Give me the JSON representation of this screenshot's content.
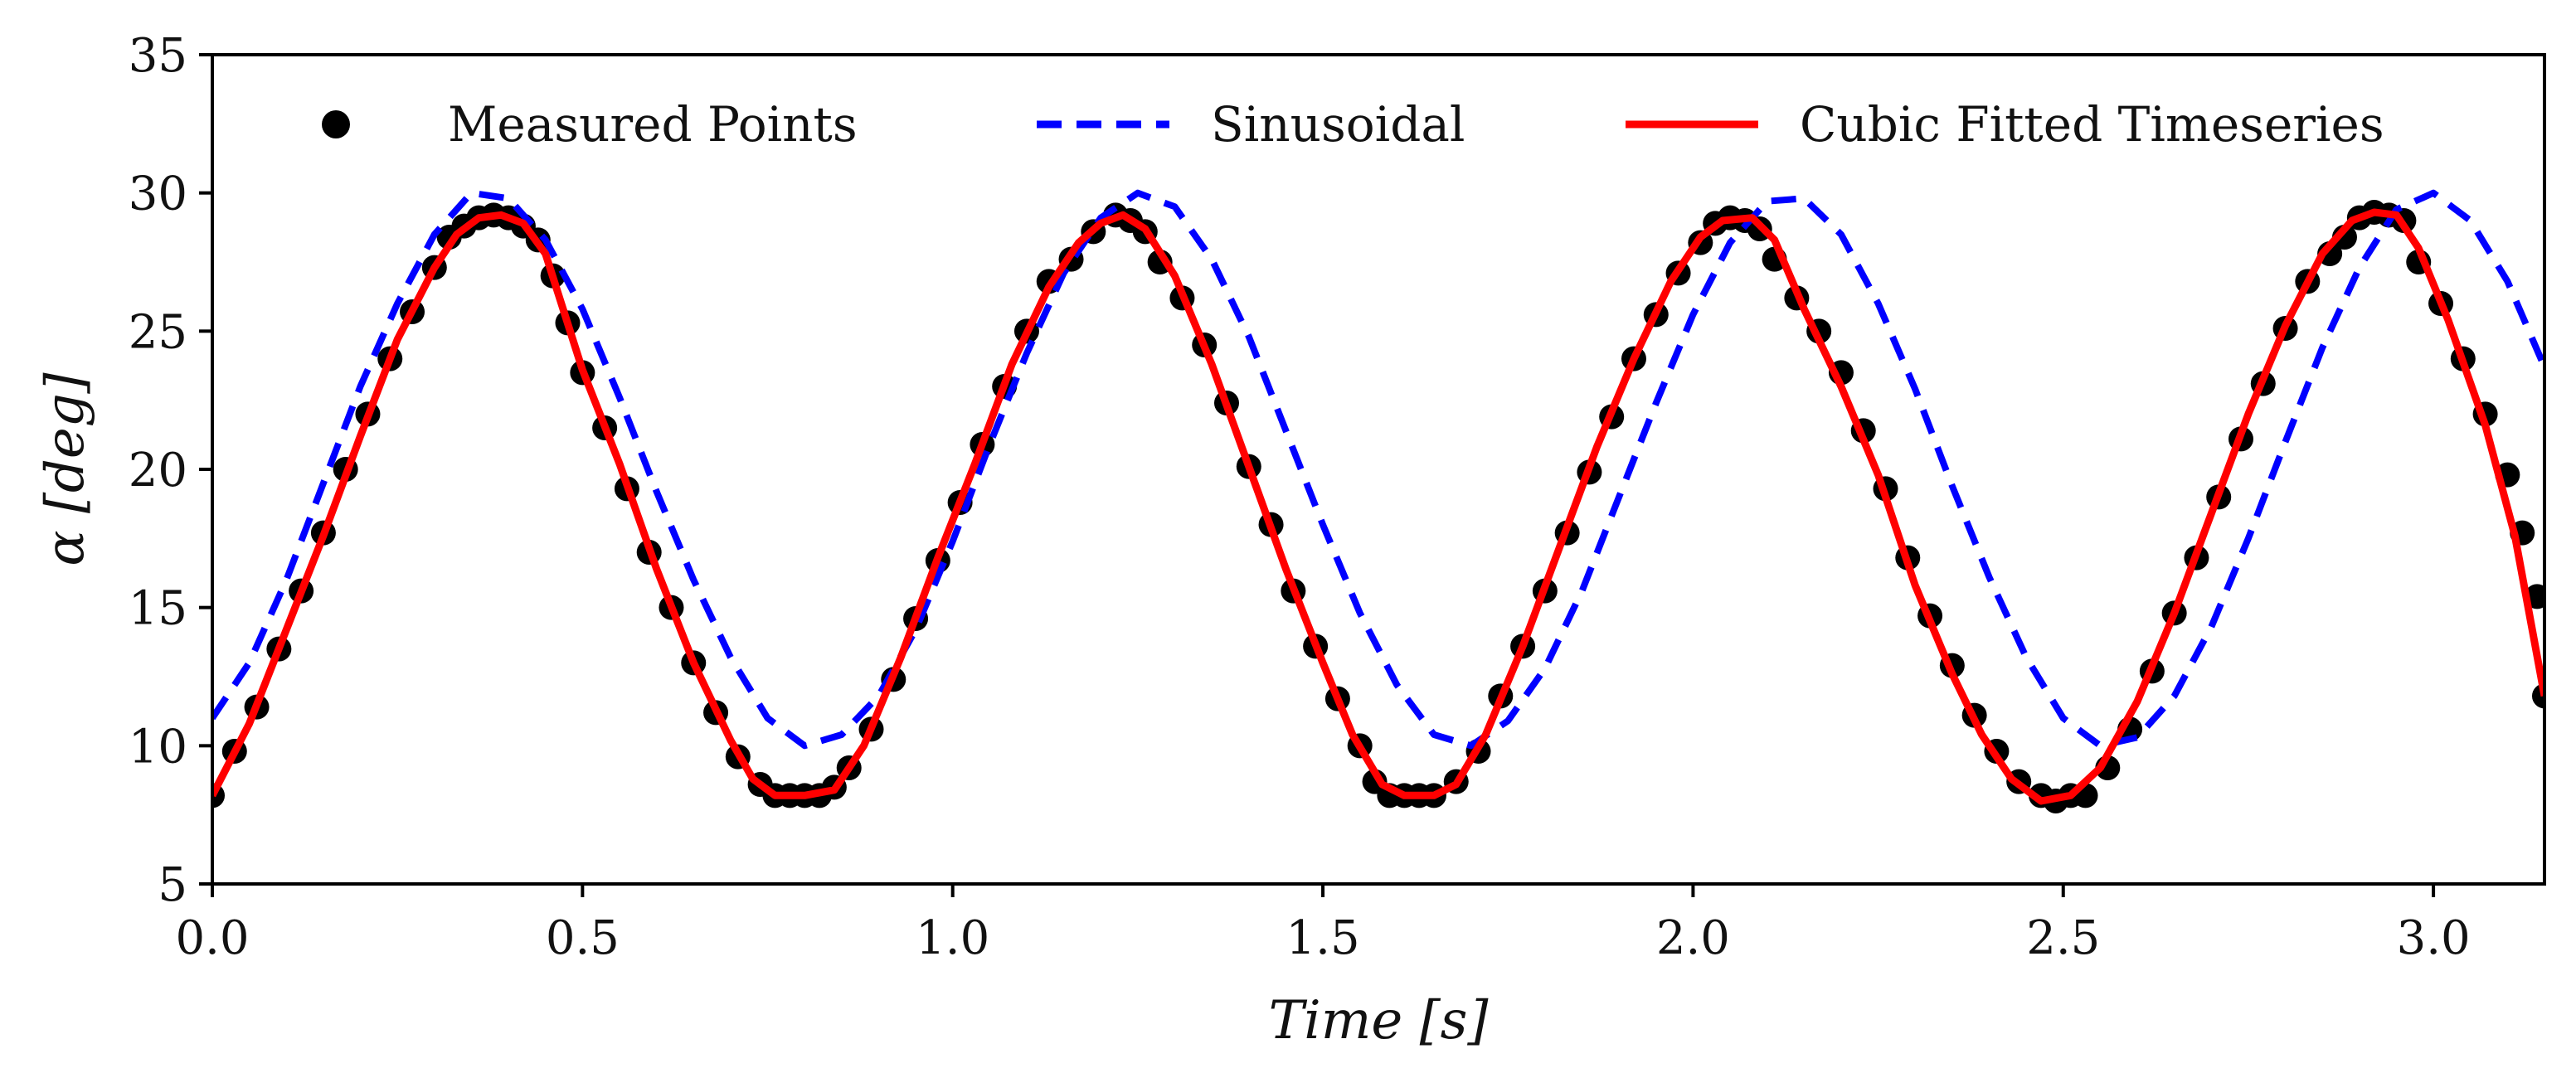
{
  "chart_data": {
    "type": "line",
    "title": "",
    "xlabel": "Time [s]",
    "ylabel": "α [deg]",
    "xlim": [
      0.0,
      3.15
    ],
    "ylim": [
      5,
      35
    ],
    "x_ticks": [
      0.0,
      0.5,
      1.0,
      1.5,
      2.0,
      2.5,
      3.0
    ],
    "x_tick_labels": [
      "0.0",
      "0.5",
      "1.0",
      "1.5",
      "2.0",
      "2.5",
      "3.0"
    ],
    "y_ticks": [
      5,
      10,
      15,
      20,
      25,
      30,
      35
    ],
    "y_tick_labels": [
      "5",
      "10",
      "15",
      "20",
      "25",
      "30",
      "35"
    ],
    "grid": false,
    "legend": {
      "placement": "top",
      "entries": [
        {
          "label": "Measured Points",
          "style": "marker",
          "color": "#000000"
        },
        {
          "label": "Sinusoidal",
          "style": "dashed",
          "color": "#0000ff"
        },
        {
          "label": "Cubic Fitted Timeseries",
          "style": "solid",
          "color": "#ff0000"
        }
      ]
    },
    "series": [
      {
        "name": "Measured Points",
        "kind": "scatter",
        "color": "#000000",
        "points": [
          [
            0.0,
            8.2
          ],
          [
            0.03,
            9.8
          ],
          [
            0.06,
            11.4
          ],
          [
            0.09,
            13.5
          ],
          [
            0.12,
            15.6
          ],
          [
            0.15,
            17.7
          ],
          [
            0.18,
            20.0
          ],
          [
            0.21,
            22.0
          ],
          [
            0.24,
            24.0
          ],
          [
            0.27,
            25.7
          ],
          [
            0.3,
            27.3
          ],
          [
            0.32,
            28.4
          ],
          [
            0.34,
            28.8
          ],
          [
            0.36,
            29.1
          ],
          [
            0.38,
            29.2
          ],
          [
            0.4,
            29.1
          ],
          [
            0.42,
            28.8
          ],
          [
            0.44,
            28.3
          ],
          [
            0.46,
            27.0
          ],
          [
            0.48,
            25.3
          ],
          [
            0.5,
            23.5
          ],
          [
            0.53,
            21.5
          ],
          [
            0.56,
            19.3
          ],
          [
            0.59,
            17.0
          ],
          [
            0.62,
            15.0
          ],
          [
            0.65,
            13.0
          ],
          [
            0.68,
            11.2
          ],
          [
            0.71,
            9.6
          ],
          [
            0.74,
            8.6
          ],
          [
            0.76,
            8.2
          ],
          [
            0.78,
            8.2
          ],
          [
            0.8,
            8.2
          ],
          [
            0.82,
            8.2
          ],
          [
            0.84,
            8.5
          ],
          [
            0.86,
            9.2
          ],
          [
            0.89,
            10.6
          ],
          [
            0.92,
            12.4
          ],
          [
            0.95,
            14.6
          ],
          [
            0.98,
            16.7
          ],
          [
            1.01,
            18.8
          ],
          [
            1.04,
            20.9
          ],
          [
            1.07,
            23.0
          ],
          [
            1.1,
            25.0
          ],
          [
            1.13,
            26.8
          ],
          [
            1.16,
            27.6
          ],
          [
            1.19,
            28.6
          ],
          [
            1.22,
            29.2
          ],
          [
            1.24,
            29.0
          ],
          [
            1.26,
            28.6
          ],
          [
            1.28,
            27.5
          ],
          [
            1.31,
            26.2
          ],
          [
            1.34,
            24.5
          ],
          [
            1.37,
            22.4
          ],
          [
            1.4,
            20.1
          ],
          [
            1.43,
            18.0
          ],
          [
            1.46,
            15.6
          ],
          [
            1.49,
            13.6
          ],
          [
            1.52,
            11.7
          ],
          [
            1.55,
            10.0
          ],
          [
            1.57,
            8.7
          ],
          [
            1.59,
            8.2
          ],
          [
            1.61,
            8.2
          ],
          [
            1.63,
            8.2
          ],
          [
            1.65,
            8.2
          ],
          [
            1.68,
            8.7
          ],
          [
            1.71,
            9.8
          ],
          [
            1.74,
            11.8
          ],
          [
            1.77,
            13.6
          ],
          [
            1.8,
            15.6
          ],
          [
            1.83,
            17.7
          ],
          [
            1.86,
            19.9
          ],
          [
            1.89,
            21.9
          ],
          [
            1.92,
            24.0
          ],
          [
            1.95,
            25.6
          ],
          [
            1.98,
            27.1
          ],
          [
            2.01,
            28.2
          ],
          [
            2.03,
            28.9
          ],
          [
            2.05,
            29.1
          ],
          [
            2.07,
            29.0
          ],
          [
            2.09,
            28.7
          ],
          [
            2.11,
            27.6
          ],
          [
            2.14,
            26.2
          ],
          [
            2.17,
            25.0
          ],
          [
            2.2,
            23.5
          ],
          [
            2.23,
            21.4
          ],
          [
            2.26,
            19.3
          ],
          [
            2.29,
            16.8
          ],
          [
            2.32,
            14.7
          ],
          [
            2.35,
            12.9
          ],
          [
            2.38,
            11.1
          ],
          [
            2.41,
            9.8
          ],
          [
            2.44,
            8.7
          ],
          [
            2.47,
            8.2
          ],
          [
            2.49,
            8.0
          ],
          [
            2.51,
            8.2
          ],
          [
            2.53,
            8.2
          ],
          [
            2.56,
            9.2
          ],
          [
            2.59,
            10.6
          ],
          [
            2.62,
            12.7
          ],
          [
            2.65,
            14.8
          ],
          [
            2.68,
            16.8
          ],
          [
            2.71,
            19.0
          ],
          [
            2.74,
            21.1
          ],
          [
            2.77,
            23.1
          ],
          [
            2.8,
            25.1
          ],
          [
            2.83,
            26.8
          ],
          [
            2.86,
            27.8
          ],
          [
            2.88,
            28.4
          ],
          [
            2.9,
            29.1
          ],
          [
            2.92,
            29.3
          ],
          [
            2.94,
            29.2
          ],
          [
            2.96,
            29.0
          ],
          [
            2.98,
            27.5
          ],
          [
            3.01,
            26.0
          ],
          [
            3.04,
            24.0
          ],
          [
            3.07,
            22.0
          ],
          [
            3.1,
            19.8
          ],
          [
            3.12,
            17.7
          ],
          [
            3.14,
            15.4
          ],
          [
            3.15,
            11.8
          ]
        ]
      },
      {
        "name": "Sinusoidal",
        "kind": "line",
        "style": "dashed",
        "color": "#0000ff",
        "function": "alpha = 20 + 10*sin(2*pi*t/T - 1.5708 + ...)",
        "points": [
          [
            0.0,
            11.0
          ],
          [
            0.05,
            13.0
          ],
          [
            0.1,
            16.0
          ],
          [
            0.15,
            19.5
          ],
          [
            0.2,
            23.0
          ],
          [
            0.25,
            26.0
          ],
          [
            0.3,
            28.5
          ],
          [
            0.35,
            30.0
          ],
          [
            0.4,
            29.8
          ],
          [
            0.45,
            28.3
          ],
          [
            0.5,
            25.8
          ],
          [
            0.55,
            22.6
          ],
          [
            0.6,
            19.2
          ],
          [
            0.65,
            16.0
          ],
          [
            0.7,
            13.2
          ],
          [
            0.75,
            11.0
          ],
          [
            0.8,
            10.0
          ],
          [
            0.85,
            10.4
          ],
          [
            0.9,
            11.8
          ],
          [
            0.95,
            14.2
          ],
          [
            1.0,
            17.4
          ],
          [
            1.05,
            20.9
          ],
          [
            1.1,
            24.2
          ],
          [
            1.15,
            27.1
          ],
          [
            1.2,
            29.1
          ],
          [
            1.25,
            30.0
          ],
          [
            1.3,
            29.5
          ],
          [
            1.35,
            27.6
          ],
          [
            1.4,
            24.8
          ],
          [
            1.45,
            21.4
          ],
          [
            1.5,
            18.0
          ],
          [
            1.55,
            14.8
          ],
          [
            1.6,
            12.2
          ],
          [
            1.65,
            10.4
          ],
          [
            1.7,
            10.0
          ],
          [
            1.75,
            10.9
          ],
          [
            1.8,
            12.8
          ],
          [
            1.85,
            15.6
          ],
          [
            1.9,
            19.0
          ],
          [
            1.95,
            22.4
          ],
          [
            2.0,
            25.6
          ],
          [
            2.05,
            28.2
          ],
          [
            2.1,
            29.7
          ],
          [
            2.15,
            29.8
          ],
          [
            2.2,
            28.5
          ],
          [
            2.25,
            26.0
          ],
          [
            2.3,
            22.9
          ],
          [
            2.35,
            19.4
          ],
          [
            2.4,
            16.1
          ],
          [
            2.45,
            13.2
          ],
          [
            2.5,
            11.0
          ],
          [
            2.55,
            10.0
          ],
          [
            2.6,
            10.3
          ],
          [
            2.65,
            11.8
          ],
          [
            2.7,
            14.3
          ],
          [
            2.75,
            17.5
          ],
          [
            2.8,
            21.0
          ],
          [
            2.85,
            24.4
          ],
          [
            2.9,
            27.3
          ],
          [
            2.95,
            29.4
          ],
          [
            3.0,
            30.0
          ],
          [
            3.05,
            29.0
          ],
          [
            3.1,
            26.8
          ],
          [
            3.15,
            23.7
          ]
        ]
      },
      {
        "name": "Cubic Fitted Timeseries",
        "kind": "line",
        "style": "solid",
        "color": "#ff0000",
        "points": [
          [
            0.0,
            8.2
          ],
          [
            0.05,
            10.8
          ],
          [
            0.1,
            14.2
          ],
          [
            0.15,
            17.6
          ],
          [
            0.2,
            21.2
          ],
          [
            0.25,
            24.7
          ],
          [
            0.3,
            27.3
          ],
          [
            0.33,
            28.5
          ],
          [
            0.36,
            29.1
          ],
          [
            0.39,
            29.2
          ],
          [
            0.42,
            28.9
          ],
          [
            0.45,
            27.8
          ],
          [
            0.5,
            23.6
          ],
          [
            0.55,
            20.2
          ],
          [
            0.6,
            16.4
          ],
          [
            0.65,
            13.0
          ],
          [
            0.7,
            10.2
          ],
          [
            0.73,
            8.8
          ],
          [
            0.76,
            8.2
          ],
          [
            0.8,
            8.2
          ],
          [
            0.84,
            8.4
          ],
          [
            0.88,
            10.0
          ],
          [
            0.93,
            13.2
          ],
          [
            0.98,
            16.8
          ],
          [
            1.03,
            20.2
          ],
          [
            1.08,
            23.8
          ],
          [
            1.13,
            26.6
          ],
          [
            1.17,
            28.2
          ],
          [
            1.2,
            28.9
          ],
          [
            1.23,
            29.2
          ],
          [
            1.26,
            28.7
          ],
          [
            1.3,
            27.0
          ],
          [
            1.35,
            23.8
          ],
          [
            1.4,
            20.1
          ],
          [
            1.45,
            16.4
          ],
          [
            1.5,
            13.0
          ],
          [
            1.54,
            10.4
          ],
          [
            1.58,
            8.6
          ],
          [
            1.61,
            8.2
          ],
          [
            1.65,
            8.2
          ],
          [
            1.68,
            8.6
          ],
          [
            1.72,
            10.4
          ],
          [
            1.77,
            13.6
          ],
          [
            1.82,
            17.2
          ],
          [
            1.87,
            20.8
          ],
          [
            1.92,
            24.0
          ],
          [
            1.97,
            26.8
          ],
          [
            2.01,
            28.4
          ],
          [
            2.04,
            29.0
          ],
          [
            2.08,
            29.1
          ],
          [
            2.11,
            28.3
          ],
          [
            2.15,
            25.8
          ],
          [
            2.2,
            23.0
          ],
          [
            2.25,
            19.8
          ],
          [
            2.3,
            15.8
          ],
          [
            2.35,
            12.6
          ],
          [
            2.39,
            10.4
          ],
          [
            2.43,
            8.8
          ],
          [
            2.47,
            8.0
          ],
          [
            2.51,
            8.2
          ],
          [
            2.55,
            9.2
          ],
          [
            2.6,
            11.6
          ],
          [
            2.65,
            14.8
          ],
          [
            2.7,
            18.4
          ],
          [
            2.75,
            22.0
          ],
          [
            2.8,
            25.2
          ],
          [
            2.85,
            27.8
          ],
          [
            2.89,
            29.0
          ],
          [
            2.92,
            29.3
          ],
          [
            2.95,
            29.2
          ],
          [
            2.98,
            28.0
          ],
          [
            3.02,
            25.4
          ],
          [
            3.07,
            21.6
          ],
          [
            3.11,
            17.6
          ],
          [
            3.15,
            11.8
          ]
        ]
      }
    ]
  }
}
